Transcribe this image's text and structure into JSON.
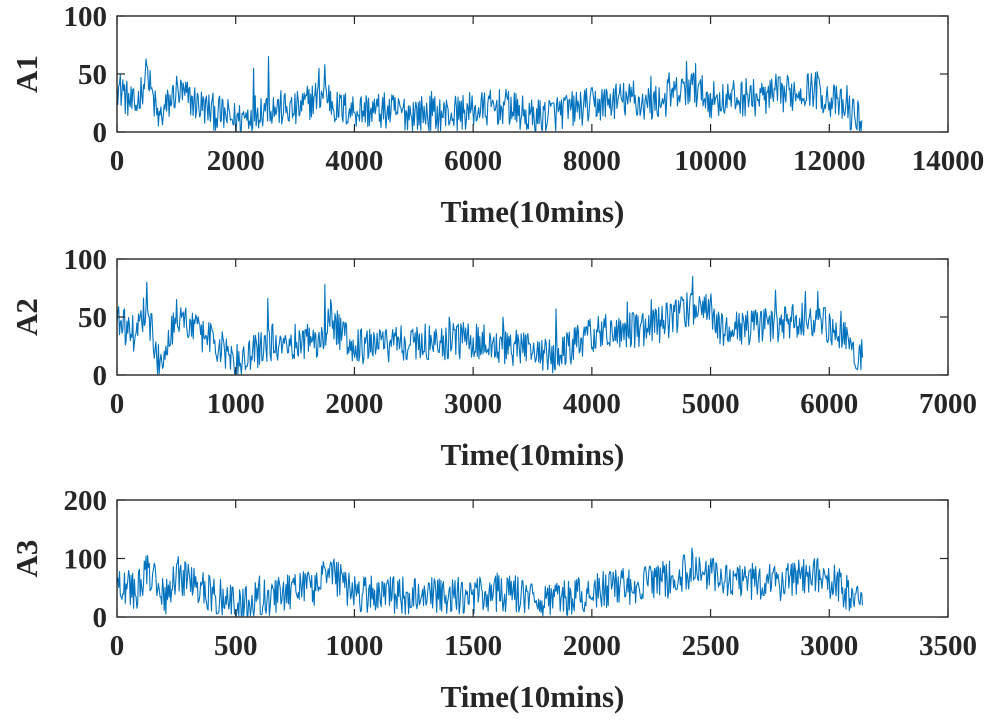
{
  "chart_data": [
    {
      "type": "line",
      "ylabel": "A1",
      "xlabel": "Time(10mins)",
      "xlim": [
        0,
        14000
      ],
      "ylim": [
        0,
        100
      ],
      "xticks": [
        0,
        2000,
        4000,
        6000,
        8000,
        10000,
        12000,
        14000
      ],
      "yticks": [
        0,
        50,
        100
      ],
      "x_end": 12550,
      "series": [
        {
          "name": "A1",
          "color": "#0072BD",
          "anchors": [
            [
              0,
              40
            ],
            [
              300,
              20
            ],
            [
              500,
              50
            ],
            [
              700,
              10
            ],
            [
              1000,
              35
            ],
            [
              1500,
              20
            ],
            [
              2000,
              10
            ],
            [
              2500,
              22
            ],
            [
              3000,
              18
            ],
            [
              3500,
              35
            ],
            [
              3700,
              20
            ],
            [
              4500,
              18
            ],
            [
              5500,
              15
            ],
            [
              6500,
              22
            ],
            [
              7000,
              12
            ],
            [
              7500,
              18
            ],
            [
              8500,
              28
            ],
            [
              9000,
              24
            ],
            [
              9700,
              38
            ],
            [
              10000,
              28
            ],
            [
              11000,
              30
            ],
            [
              11700,
              38
            ],
            [
              12200,
              22
            ],
            [
              12550,
              10
            ]
          ],
          "spikes": [
            [
              100,
              45
            ],
            [
              500,
              57
            ],
            [
              1000,
              48
            ],
            [
              2300,
              55
            ],
            [
              2550,
              65
            ],
            [
              3400,
              55
            ],
            [
              3500,
              58
            ],
            [
              5300,
              35
            ],
            [
              6600,
              35
            ],
            [
              8700,
              44
            ],
            [
              9000,
              48
            ],
            [
              9300,
              51
            ],
            [
              9600,
              61
            ],
            [
              9750,
              59
            ],
            [
              10600,
              46
            ],
            [
              11100,
              50
            ],
            [
              11800,
              52
            ],
            [
              12300,
              40
            ]
          ]
        }
      ]
    },
    {
      "type": "line",
      "ylabel": "A2",
      "xlabel": "Time(10mins)",
      "xlim": [
        0,
        7000
      ],
      "ylim": [
        0,
        100
      ],
      "xticks": [
        0,
        1000,
        2000,
        3000,
        4000,
        5000,
        6000,
        7000
      ],
      "yticks": [
        0,
        50,
        100
      ],
      "x_end": 6280,
      "series": [
        {
          "name": "A2",
          "color": "#0072BD",
          "anchors": [
            [
              0,
              45
            ],
            [
              150,
              35
            ],
            [
              250,
              60
            ],
            [
              350,
              10
            ],
            [
              500,
              50
            ],
            [
              800,
              30
            ],
            [
              1000,
              10
            ],
            [
              1300,
              28
            ],
            [
              1700,
              30
            ],
            [
              1800,
              45
            ],
            [
              2000,
              25
            ],
            [
              2500,
              28
            ],
            [
              3000,
              30
            ],
            [
              3500,
              20
            ],
            [
              3700,
              15
            ],
            [
              4000,
              35
            ],
            [
              4500,
              40
            ],
            [
              4900,
              60
            ],
            [
              5100,
              40
            ],
            [
              5500,
              42
            ],
            [
              5900,
              50
            ],
            [
              6100,
              35
            ],
            [
              6280,
              15
            ]
          ],
          "spikes": [
            [
              60,
              57
            ],
            [
              250,
              80
            ],
            [
              500,
              65
            ],
            [
              1270,
              66
            ],
            [
              1750,
              78
            ],
            [
              1800,
              65
            ],
            [
              2800,
              50
            ],
            [
              3250,
              50
            ],
            [
              3700,
              57
            ],
            [
              4300,
              63
            ],
            [
              4500,
              65
            ],
            [
              4850,
              85
            ],
            [
              5000,
              70
            ],
            [
              5550,
              73
            ],
            [
              5800,
              72
            ],
            [
              5900,
              72
            ],
            [
              6100,
              55
            ]
          ]
        }
      ]
    },
    {
      "type": "line",
      "ylabel": "A3",
      "xlabel": "Time(10mins)",
      "xlim": [
        0,
        3500
      ],
      "ylim": [
        0,
        200
      ],
      "xticks": [
        0,
        500,
        1000,
        1500,
        2000,
        2500,
        3000,
        3500
      ],
      "yticks": [
        0,
        100,
        200
      ],
      "x_end": 3140,
      "series": [
        {
          "name": "A3",
          "color": "#0072BD",
          "anchors": [
            [
              0,
              60
            ],
            [
              80,
              40
            ],
            [
              130,
              80
            ],
            [
              200,
              30
            ],
            [
              250,
              75
            ],
            [
              400,
              40
            ],
            [
              500,
              20
            ],
            [
              700,
              40
            ],
            [
              850,
              50
            ],
            [
              880,
              80
            ],
            [
              1000,
              40
            ],
            [
              1300,
              35
            ],
            [
              1700,
              40
            ],
            [
              1800,
              20
            ],
            [
              2000,
              45
            ],
            [
              2300,
              60
            ],
            [
              2450,
              85
            ],
            [
              2550,
              60
            ],
            [
              2800,
              60
            ],
            [
              2950,
              75
            ],
            [
              3050,
              50
            ],
            [
              3140,
              20
            ]
          ],
          "spikes": [
            [
              30,
              75
            ],
            [
              130,
              105
            ],
            [
              250,
              90
            ],
            [
              600,
              70
            ],
            [
              870,
              95
            ],
            [
              1600,
              75
            ],
            [
              2100,
              80
            ],
            [
              2300,
              95
            ],
            [
              2420,
              118
            ],
            [
              2500,
              100
            ],
            [
              2750,
              90
            ],
            [
              2950,
              100
            ],
            [
              3050,
              75
            ]
          ]
        }
      ]
    }
  ]
}
